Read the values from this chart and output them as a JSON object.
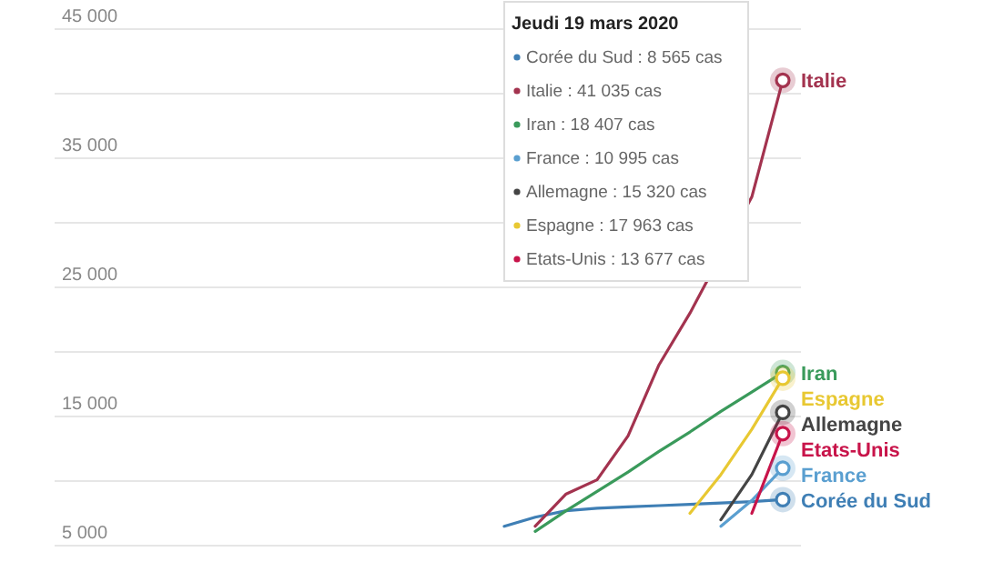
{
  "chart_data": {
    "type": "line",
    "categories": [
      null,
      null,
      null,
      null,
      null,
      null,
      null,
      null,
      null,
      null,
      null,
      null,
      null,
      null,
      null,
      null,
      null,
      null,
      null,
      null,
      null,
      null,
      null,
      null
    ],
    "series": [
      {
        "name": "Corée du Sud",
        "color": "#3f7fb5",
        "values": [
          null,
          null,
          null,
          null,
          null,
          null,
          null,
          null,
          null,
          null,
          null,
          null,
          null,
          null,
          6500,
          7200,
          7700,
          7900,
          8000,
          8100,
          8200,
          8300,
          8400,
          8565
        ]
      },
      {
        "name": "Italie",
        "color": "#a3334f",
        "values": [
          null,
          null,
          null,
          null,
          null,
          null,
          null,
          null,
          null,
          null,
          null,
          null,
          null,
          null,
          null,
          6500,
          9000,
          10100,
          13500,
          19000,
          23000,
          null,
          32000,
          41035
        ]
      },
      {
        "name": "Iran",
        "color": "#3a9a5b",
        "values": [
          null,
          null,
          null,
          null,
          null,
          null,
          null,
          null,
          null,
          null,
          null,
          null,
          null,
          null,
          null,
          6100,
          7700,
          9200,
          10700,
          12300,
          13800,
          15400,
          16900,
          18407
        ]
      },
      {
        "name": "France",
        "color": "#5a9fd0",
        "values": [
          null,
          null,
          null,
          null,
          null,
          null,
          null,
          null,
          null,
          null,
          null,
          null,
          null,
          null,
          null,
          null,
          null,
          null,
          null,
          null,
          null,
          6500,
          8500,
          10995
        ]
      },
      {
        "name": "Allemagne",
        "color": "#444444",
        "values": [
          null,
          null,
          null,
          null,
          null,
          null,
          null,
          null,
          null,
          null,
          null,
          null,
          null,
          null,
          null,
          null,
          null,
          null,
          null,
          null,
          null,
          7000,
          10500,
          15320
        ]
      },
      {
        "name": "Espagne",
        "color": "#e8c832",
        "values": [
          null,
          null,
          null,
          null,
          null,
          null,
          null,
          null,
          null,
          null,
          null,
          null,
          null,
          null,
          null,
          null,
          null,
          null,
          null,
          null,
          7500,
          10500,
          14000,
          17963
        ]
      },
      {
        "name": "Etats-Unis",
        "color": "#c8144a",
        "values": [
          null,
          null,
          null,
          null,
          null,
          null,
          null,
          null,
          null,
          null,
          null,
          null,
          null,
          null,
          null,
          null,
          null,
          null,
          null,
          null,
          null,
          null,
          7500,
          13677
        ]
      }
    ],
    "ylim": [
      5000,
      45000
    ],
    "yticks": [
      5000,
      {
        "value": 10000,
        "label": null
      },
      15000,
      {
        "value": 20000,
        "label": null
      },
      25000,
      {
        "value": 30000,
        "label": null
      },
      35000,
      {
        "value": 40000,
        "label": null
      },
      45000
    ],
    "grid": "y",
    "line_style": "solid",
    "annotations": [
      "Jeudi 19 mars 2020",
      "Corée du Sud : 8 565 cas",
      "Italie : 41 035 cas",
      "Iran : 18 407 cas",
      "France : 10 995 cas",
      "Allemagne : 15 320 cas",
      "Espagne : 17 963 cas",
      "Etats-Unis : 13 677 cas"
    ]
  }
}
